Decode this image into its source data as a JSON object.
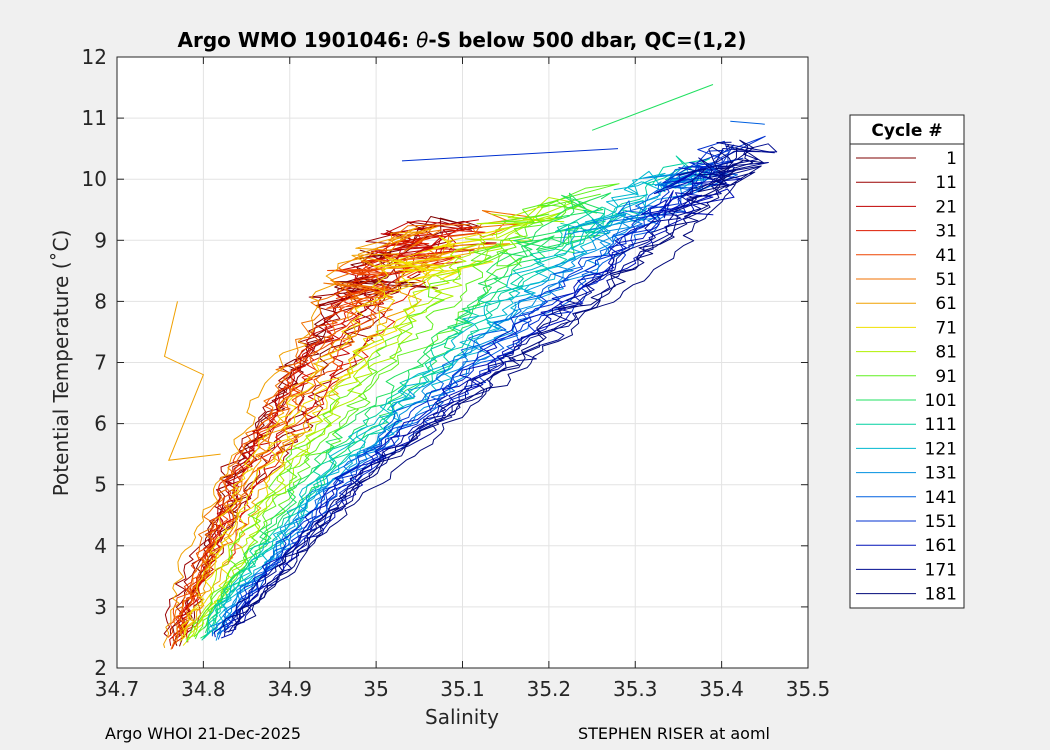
{
  "chart_data": {
    "type": "line",
    "title_parts": [
      "Argo WMO 1901046: ",
      "θ",
      "-S below 500 dbar,  QC=(1,2)"
    ],
    "xlabel": "Salinity",
    "ylabel": "Potential Temperature (˚C)",
    "xlim": [
      34.7,
      35.5
    ],
    "ylim": [
      2,
      12
    ],
    "xticks": [
      "34.7",
      "34.8",
      "34.9",
      "35",
      "35.1",
      "35.2",
      "35.3",
      "35.4",
      "35.5"
    ],
    "yticks": [
      "2",
      "3",
      "4",
      "5",
      "6",
      "7",
      "8",
      "9",
      "10",
      "11",
      "12"
    ],
    "grid": true,
    "legend": {
      "title": "Cycle #",
      "placement": "right",
      "entries": [
        "1",
        "11",
        "21",
        "31",
        "41",
        "51",
        "61",
        "71",
        "81",
        "91",
        "101",
        "111",
        "121",
        "131",
        "141",
        "151",
        "161",
        "171",
        "181"
      ],
      "colors": [
        "#7f0000",
        "#9a0000",
        "#c00000",
        "#dd1a00",
        "#ee4400",
        "#f07000",
        "#f0a000",
        "#f0e000",
        "#b0f000",
        "#60f020",
        "#20e060",
        "#00d0a0",
        "#00b8d0",
        "#0090e0",
        "#0060e0",
        "#0030d0",
        "#0010b8",
        "#000c90",
        "#00087a"
      ]
    },
    "series_model": "Each cycle profile is a theta-S curve following a 6-point envelope: salinity is a linear blend between envelope columns 'fresh' and 'salty' by mixing fraction m (0 to 1), with a small wander; early cycles (red) lie on the fresh side, later cycles (blue) on the salty side.",
    "envelope": {
      "theta": [
        2.3,
        3.0,
        5.0,
        7.0,
        8.6,
        10.3
      ],
      "fresh": [
        34.755,
        34.765,
        34.815,
        34.885,
        34.95,
        35.18
      ],
      "salty": [
        34.82,
        34.86,
        34.995,
        35.18,
        35.33,
        35.45
      ]
    },
    "profiles": [
      {
        "cycle": 1,
        "m": 0.08
      },
      {
        "cycle": 4,
        "m": 0.2
      },
      {
        "cycle": 7,
        "m": 0.12
      },
      {
        "cycle": 11,
        "m": 0.1
      },
      {
        "cycle": 14,
        "m": 0.25
      },
      {
        "cycle": 17,
        "m": 0.05
      },
      {
        "cycle": 21,
        "m": 0.15
      },
      {
        "cycle": 24,
        "m": 0.22
      },
      {
        "cycle": 27,
        "m": 0.08
      },
      {
        "cycle": 31,
        "m": 0.18
      },
      {
        "cycle": 34,
        "m": 0.12
      },
      {
        "cycle": 37,
        "m": 0.28
      },
      {
        "cycle": 41,
        "m": 0.1
      },
      {
        "cycle": 44,
        "m": 0.2
      },
      {
        "cycle": 47,
        "m": 0.15
      },
      {
        "cycle": 51,
        "m": 0.06
      },
      {
        "cycle": 54,
        "m": 0.24
      },
      {
        "cycle": 57,
        "m": 0.14
      },
      {
        "cycle": 61,
        "m": 0.02
      },
      {
        "cycle": 64,
        "m": 0.18
      },
      {
        "cycle": 67,
        "m": 0.3
      },
      {
        "cycle": 71,
        "m": 0.2
      },
      {
        "cycle": 74,
        "m": 0.26
      },
      {
        "cycle": 77,
        "m": 0.32
      },
      {
        "cycle": 81,
        "m": 0.34
      },
      {
        "cycle": 84,
        "m": 0.38
      },
      {
        "cycle": 87,
        "m": 0.42
      },
      {
        "cycle": 91,
        "m": 0.4
      },
      {
        "cycle": 94,
        "m": 0.46
      },
      {
        "cycle": 97,
        "m": 0.5
      },
      {
        "cycle": 101,
        "m": 0.52
      },
      {
        "cycle": 104,
        "m": 0.56
      },
      {
        "cycle": 107,
        "m": 0.6
      },
      {
        "cycle": 111,
        "m": 0.58
      },
      {
        "cycle": 114,
        "m": 0.64
      },
      {
        "cycle": 117,
        "m": 0.66
      },
      {
        "cycle": 121,
        "m": 0.62
      },
      {
        "cycle": 124,
        "m": 0.7
      },
      {
        "cycle": 127,
        "m": 0.68
      },
      {
        "cycle": 131,
        "m": 0.72
      },
      {
        "cycle": 134,
        "m": 0.76
      },
      {
        "cycle": 137,
        "m": 0.7
      },
      {
        "cycle": 141,
        "m": 0.78
      },
      {
        "cycle": 144,
        "m": 0.82
      },
      {
        "cycle": 147,
        "m": 0.74
      },
      {
        "cycle": 151,
        "m": 0.8
      },
      {
        "cycle": 154,
        "m": 0.86
      },
      {
        "cycle": 157,
        "m": 0.78
      },
      {
        "cycle": 161,
        "m": 0.84
      },
      {
        "cycle": 164,
        "m": 0.9
      },
      {
        "cycle": 167,
        "m": 0.82
      },
      {
        "cycle": 171,
        "m": 0.88
      },
      {
        "cycle": 174,
        "m": 0.94
      },
      {
        "cycle": 177,
        "m": 0.86
      },
      {
        "cycle": 181,
        "m": 0.92
      },
      {
        "cycle": 183,
        "m": 1.0
      },
      {
        "cycle": 185,
        "m": 0.9
      }
    ],
    "excursions": [
      {
        "cycle": 61,
        "points": [
          [
            34.77,
            8.0
          ],
          [
            34.755,
            7.1
          ],
          [
            34.8,
            6.8
          ],
          [
            34.76,
            5.4
          ],
          [
            34.82,
            5.5
          ]
        ]
      },
      {
        "cycle": 101,
        "points": [
          [
            35.25,
            10.8
          ],
          [
            35.39,
            11.55
          ]
        ]
      },
      {
        "cycle": 141,
        "points": [
          [
            35.41,
            10.95
          ],
          [
            35.45,
            10.9
          ]
        ]
      },
      {
        "cycle": 151,
        "points": [
          [
            35.03,
            10.3
          ],
          [
            35.28,
            10.5
          ]
        ]
      }
    ]
  },
  "footer": {
    "left": "Argo WHOI 21-Dec-2025",
    "right": "STEPHEN RISER at aoml"
  }
}
